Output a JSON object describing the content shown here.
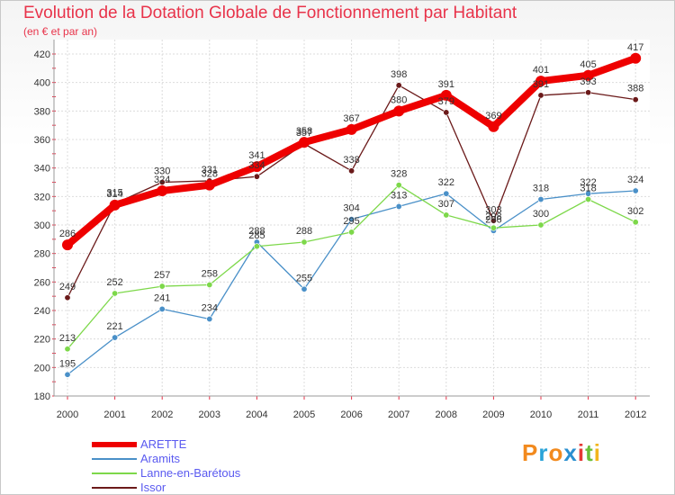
{
  "header": {
    "title": "Evolution de la Dotation Globale de Fonctionnement par Habitant",
    "subtitle": "(en € et par an)"
  },
  "logo": {
    "text": "Proxiti",
    "colors": [
      "#f28a1e",
      "#29a3d8",
      "#f28a1e",
      "#2a8fd0",
      "#e53935",
      "#6bbf3a",
      "#f2b61e"
    ]
  },
  "chart_data": {
    "type": "line",
    "x": [
      2000,
      2001,
      2002,
      2003,
      2004,
      2005,
      2006,
      2007,
      2008,
      2009,
      2010,
      2011,
      2012
    ],
    "ylim": [
      180,
      420
    ],
    "yticks": [
      180,
      200,
      220,
      240,
      260,
      280,
      300,
      320,
      340,
      360,
      380,
      400,
      420
    ],
    "grid": true,
    "legend_position": "bottom-left",
    "series": [
      {
        "name": "ARETTE",
        "color": "#ee0000",
        "values": [
          286,
          314,
          324,
          328,
          341,
          358,
          367,
          380,
          391,
          369,
          401,
          405,
          417
        ]
      },
      {
        "name": "Aramits",
        "color": "#4a90c8",
        "values": [
          195,
          221,
          241,
          234,
          288,
          255,
          304,
          313,
          322,
          296,
          318,
          322,
          324
        ]
      },
      {
        "name": "Lanne-en-Barétous",
        "color": "#7dd84a",
        "values": [
          213,
          252,
          257,
          258,
          285,
          288,
          295,
          328,
          307,
          298,
          300,
          318,
          302
        ]
      },
      {
        "name": "Issor",
        "color": "#6b1a1a",
        "values": [
          249,
          315,
          330,
          331,
          334,
          357,
          338,
          398,
          379,
          303,
          391,
          393,
          388
        ]
      }
    ]
  }
}
